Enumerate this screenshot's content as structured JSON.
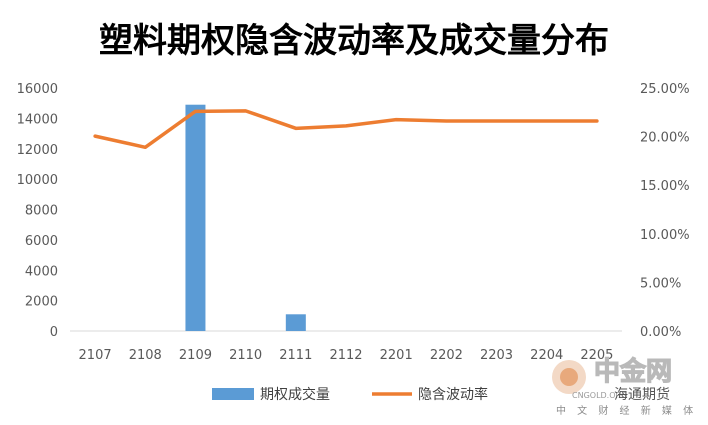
{
  "chart_data": {
    "type": "bar+line",
    "title": "塑料期权隐含波动率及成交量分布",
    "categories": [
      "2107",
      "2108",
      "2109",
      "2110",
      "2111",
      "2112",
      "2201",
      "2202",
      "2203",
      "2204",
      "2205"
    ],
    "series": [
      {
        "name": "期权成交量",
        "type": "bar",
        "axis": "left",
        "color": "#5B9BD5",
        "values": [
          0,
          0,
          14900,
          0,
          1100,
          0,
          0,
          0,
          0,
          0,
          0
        ]
      },
      {
        "name": "隐含波动率",
        "type": "line",
        "axis": "right",
        "color": "#ED7D31",
        "values": [
          0.2005,
          0.189,
          0.226,
          0.2265,
          0.2085,
          0.211,
          0.2175,
          0.216,
          0.216,
          0.216,
          0.216
        ]
      }
    ],
    "y_left": {
      "min": 0,
      "max": 16000,
      "ticks": [
        "0",
        "2000",
        "4000",
        "6000",
        "8000",
        "10000",
        "12000",
        "14000",
        "16000"
      ]
    },
    "y_right": {
      "min": 0,
      "max": 0.25,
      "ticks": [
        "0.00%",
        "5.00%",
        "10.00%",
        "15.00%",
        "20.00%",
        "25.00%"
      ]
    },
    "grid": false,
    "legend_position": "bottom"
  },
  "watermark": {
    "logo_text": "中金网",
    "subtitle": "中 文 财 经 新 媒 体",
    "source": "海通期货",
    "domain_hint": "CNGOLD.ORG"
  }
}
